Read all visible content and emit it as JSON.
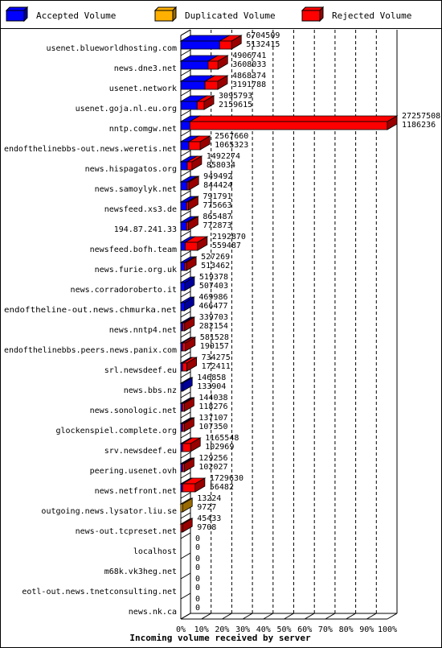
{
  "chart_data": {
    "type": "bar",
    "title": "Incoming volume received by server",
    "xlabel": "Incoming volume received by server",
    "ylabel": "",
    "stacked": true,
    "percent_axis": true,
    "xlim": [
      0,
      100
    ],
    "x_ticks": [
      "0%",
      "10%",
      "20%",
      "30%",
      "40%",
      "50%",
      "60%",
      "70%",
      "80%",
      "90%",
      "100%"
    ],
    "grid": true,
    "legend_position": "top",
    "series": [
      {
        "name": "Accepted Volume",
        "color": "#0000ff"
      },
      {
        "name": "Duplicated Volume",
        "color": "#ffb000"
      },
      {
        "name": "Rejected Volume",
        "color": "#ff0000"
      }
    ],
    "categories": [
      "usenet.blueworldhosting.com",
      "news.dne3.net",
      "usenet.network",
      "usenet.goja.nl.eu.org",
      "nntp.comgw.net",
      "endofthelinebbs-out.news.weretis.net",
      "news.hispagatos.org",
      "news.samoylyk.net",
      "newsfeed.xs3.de",
      "194.87.241.33",
      "newsfeed.bofh.team",
      "news.furie.org.uk",
      "news.corradoroberto.it",
      "endoftheline-out.news.chmurka.net",
      "news.nntp4.net",
      "endofthelinebbs.peers.news.panix.com",
      "srl.newsdeef.eu",
      "news.bbs.nz",
      "news.sonologic.net",
      "glockenspiel.complete.org",
      "srv.newsdeef.eu",
      "peering.usenet.ovh",
      "news.netfront.net",
      "outgoing.news.lysator.liu.se",
      "news-out.tcpreset.net",
      "localhost",
      "m68k.vk3heg.net",
      "eotl-out.news.tnetconsulting.net",
      "news.nk.ca"
    ],
    "rows": [
      {
        "total": "6704509",
        "accepted": "5132415",
        "acc_pct": 18.8,
        "dup_pct": 0,
        "rej_pct": 5.8
      },
      {
        "total": "4906741",
        "accepted": "3608033",
        "acc_pct": 13.2,
        "dup_pct": 0,
        "rej_pct": 4.8
      },
      {
        "total": "4868374",
        "accepted": "3191788",
        "acc_pct": 11.7,
        "dup_pct": 0,
        "rej_pct": 6.2
      },
      {
        "total": "3095793",
        "accepted": "2159615",
        "acc_pct": 7.9,
        "dup_pct": 0,
        "rej_pct": 3.4
      },
      {
        "total": "27257508",
        "accepted": "1186236",
        "acc_pct": 4.4,
        "dup_pct": 0,
        "rej_pct": 95.6
      },
      {
        "total": "2567660",
        "accepted": "1065323",
        "acc_pct": 3.9,
        "dup_pct": 0,
        "rej_pct": 5.5
      },
      {
        "total": "1492274",
        "accepted": "858034",
        "acc_pct": 3.1,
        "dup_pct": 0,
        "rej_pct": 2.3
      },
      {
        "total": "949492",
        "accepted": "844424",
        "acc_pct": 3.1,
        "dup_pct": 0,
        "rej_pct": 0.4
      },
      {
        "total": "791791",
        "accepted": "775663",
        "acc_pct": 2.8,
        "dup_pct": 0,
        "rej_pct": 0.1
      },
      {
        "total": "865487",
        "accepted": "772873",
        "acc_pct": 2.8,
        "dup_pct": 0,
        "rej_pct": 0.3
      },
      {
        "total": "2192870",
        "accepted": "559487",
        "acc_pct": 2.1,
        "dup_pct": 0,
        "rej_pct": 6.0
      },
      {
        "total": "527269",
        "accepted": "513462",
        "acc_pct": 1.9,
        "dup_pct": 0,
        "rej_pct": 0.1
      },
      {
        "total": "519378",
        "accepted": "507403",
        "acc_pct": 1.9,
        "dup_pct": 0,
        "rej_pct": 0.0
      },
      {
        "total": "469986",
        "accepted": "466477",
        "acc_pct": 1.7,
        "dup_pct": 0,
        "rej_pct": 0.0
      },
      {
        "total": "339703",
        "accepted": "282154",
        "acc_pct": 1.0,
        "dup_pct": 0,
        "rej_pct": 0.2
      },
      {
        "total": "581528",
        "accepted": "190157",
        "acc_pct": 0.7,
        "dup_pct": 0,
        "rej_pct": 1.4
      },
      {
        "total": "734275",
        "accepted": "172411",
        "acc_pct": 0.6,
        "dup_pct": 0,
        "rej_pct": 2.1
      },
      {
        "total": "146858",
        "accepted": "133904",
        "acc_pct": 0.5,
        "dup_pct": 0,
        "rej_pct": 0.0
      },
      {
        "total": "144038",
        "accepted": "118276",
        "acc_pct": 0.4,
        "dup_pct": 0,
        "rej_pct": 0.1
      },
      {
        "total": "137107",
        "accepted": "107350",
        "acc_pct": 0.4,
        "dup_pct": 0,
        "rej_pct": 0.1
      },
      {
        "total": "1165548",
        "accepted": "102969",
        "acc_pct": 0.4,
        "dup_pct": 0,
        "rej_pct": 3.9
      },
      {
        "total": "129256",
        "accepted": "102027",
        "acc_pct": 0.4,
        "dup_pct": 0,
        "rej_pct": 0.1
      },
      {
        "total": "1729630",
        "accepted": "56482",
        "acc_pct": 0.2,
        "dup_pct": 0,
        "rej_pct": 6.1
      },
      {
        "total": "13224",
        "accepted": "9727",
        "acc_pct": 0.0,
        "dup_pct": 0.05,
        "rej_pct": 0
      },
      {
        "total": "45433",
        "accepted": "9708",
        "acc_pct": 0.0,
        "dup_pct": 0,
        "rej_pct": 0.1
      },
      {
        "total": "0",
        "accepted": "0",
        "acc_pct": 0,
        "dup_pct": 0,
        "rej_pct": 0
      },
      {
        "total": "0",
        "accepted": "0",
        "acc_pct": 0,
        "dup_pct": 0,
        "rej_pct": 0
      },
      {
        "total": "0",
        "accepted": "0",
        "acc_pct": 0,
        "dup_pct": 0,
        "rej_pct": 0
      },
      {
        "total": "0",
        "accepted": "0",
        "acc_pct": 0,
        "dup_pct": 0,
        "rej_pct": 0
      }
    ]
  }
}
